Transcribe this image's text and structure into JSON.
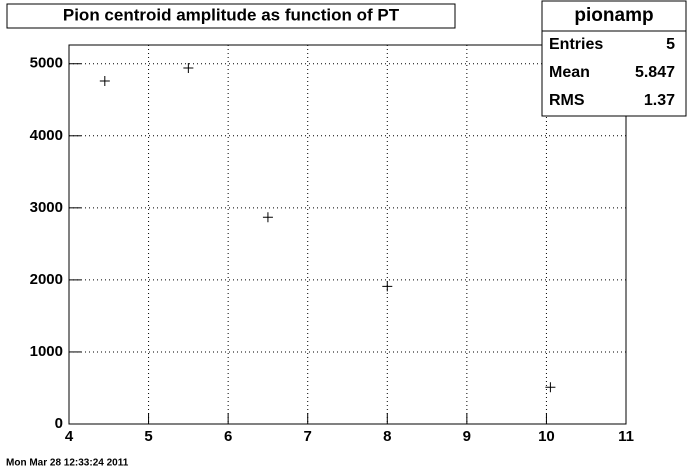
{
  "chart_data": {
    "type": "scatter",
    "title": "Pion centroid amplitude as function of PT",
    "x": [
      4.45,
      5.5,
      6.5,
      8.0,
      10.05
    ],
    "values": [
      4760,
      4940,
      2870,
      1910,
      510
    ],
    "color": "#000000",
    "xlim": [
      4,
      11
    ],
    "xticks": [
      4,
      5,
      6,
      7,
      8,
      9,
      10,
      11
    ],
    "ylim": [
      0,
      5260
    ],
    "yticks": [
      0,
      1000,
      2000,
      3000,
      4000,
      5000
    ],
    "grid": true,
    "stats": {
      "title": "pionamp",
      "rows": [
        [
          "Entries",
          5
        ],
        [
          "Mean",
          5.847
        ],
        [
          "RMS",
          1.37
        ]
      ]
    },
    "timestamp": "Mon Mar 28 12:33:24 2011"
  }
}
